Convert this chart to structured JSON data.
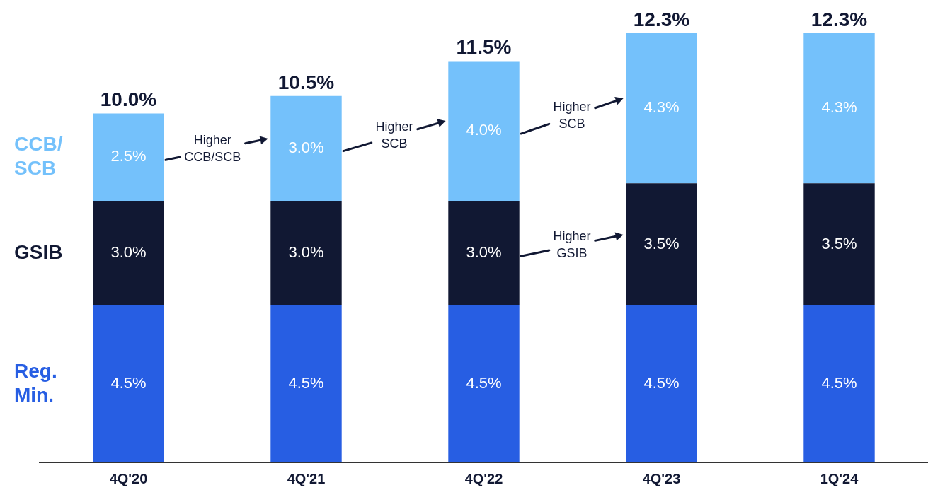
{
  "chart_data": {
    "type": "bar",
    "stacked": true,
    "categories": [
      "4Q'20",
      "4Q'21",
      "4Q'22",
      "4Q'23",
      "1Q'24"
    ],
    "series": [
      {
        "name": "Reg. Min.",
        "color": "#275ee3",
        "values": [
          4.5,
          4.5,
          4.5,
          4.5,
          4.5
        ],
        "value_labels": [
          "4.5%",
          "4.5%",
          "4.5%",
          "4.5%",
          "4.5%"
        ]
      },
      {
        "name": "GSIB",
        "color": "#111833",
        "values": [
          3.0,
          3.0,
          3.0,
          3.5,
          3.5
        ],
        "value_labels": [
          "3.0%",
          "3.0%",
          "3.0%",
          "3.5%",
          "3.5%"
        ]
      },
      {
        "name": "CCB/SCB",
        "color": "#74c1fb",
        "values": [
          2.5,
          3.0,
          4.0,
          4.3,
          4.3
        ],
        "value_labels": [
          "2.5%",
          "3.0%",
          "4.0%",
          "4.3%",
          "4.3%"
        ]
      }
    ],
    "totals": [
      "10.0%",
      "10.5%",
      "11.5%",
      "12.3%",
      "12.3%"
    ],
    "annotations": [
      "Higher CCB/SCB",
      "Higher SCB",
      "Higher SCB",
      "Higher GSIB"
    ],
    "legend": "left",
    "grid": false,
    "tick_labels": "x"
  }
}
